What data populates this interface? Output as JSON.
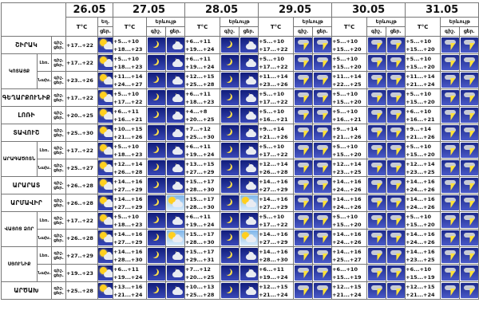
{
  "dates": [
    "26.05",
    "27.05",
    "28.05",
    "29.05",
    "30.05",
    "31.05"
  ],
  "labels": {
    "temp": "T°C",
    "phen_short": "Եղ. ",
    "phenomenon": "Երևույթ",
    "night": "գիշ.",
    "day": "ցեր."
  },
  "regions": [
    {
      "name": "ՇԻՐԱԿ"
    },
    {
      "name": "ԿՈՏԱՅՔ",
      "subs": [
        "Լեռ.",
        "Նախ."
      ]
    },
    {
      "name": "ԳԵՂԱՐՔՈՒՆԻՔ"
    },
    {
      "name": "ԼՈՌԻ"
    },
    {
      "name": "ՏԱՎՈՒՇ"
    },
    {
      "name": "ԱՐԱԳԱԾՈՏՆ",
      "subs": [
        "Լեռ.",
        "Նախ."
      ]
    },
    {
      "name": "ԱՐԱՐԱՏ"
    },
    {
      "name": "ԱՐՄԱՎԻՐ"
    },
    {
      "name": "ՎԱՅՈՑ ՁՈՐ",
      "subs": [
        "Լեռ.",
        "Նախ."
      ]
    },
    {
      "name": "ՍՅՈՒՆԻՔ",
      "subs": [
        "Լեռ.",
        "Նախ."
      ]
    },
    {
      "name": "ԱՐԾԱԽ"
    }
  ],
  "temps": [
    [
      [
        "+17..+22"
      ],
      [
        "+5...+10",
        "+18...+23"
      ],
      [
        "+6...+11",
        "+19...+24"
      ],
      [
        "+5...+10",
        "+17...+22"
      ],
      [
        "+5...+10",
        "+15...+20"
      ],
      [
        "+5...+10",
        "+15...+20"
      ]
    ],
    [
      [
        "+17..+22"
      ],
      [
        "+5...+10",
        "+18...+23"
      ],
      [
        "+6...+11",
        "+19...+24"
      ],
      [
        "+5...+10",
        "+17...+22"
      ],
      [
        "+5...+10",
        "+15...+20"
      ],
      [
        "+5...+10",
        "+15...+20"
      ]
    ],
    [
      [
        "+23..+26"
      ],
      [
        "+11...+14",
        "+24...+27"
      ],
      [
        "+12...+15",
        "+25...+28"
      ],
      [
        "+11...+14",
        "+23...+26"
      ],
      [
        "+11...+14",
        "+22...+25"
      ],
      [
        "+11...+14",
        "+21...+24"
      ]
    ],
    [
      [
        "+17..+22"
      ],
      [
        "+5...+10",
        "+17...+22"
      ],
      [
        "+6...+11",
        "+18...+23"
      ],
      [
        "+5...+10",
        "+17...+22"
      ],
      [
        "+5...+10",
        "+15...+20"
      ],
      [
        "+5...+10",
        "+15...+20"
      ]
    ],
    [
      [
        "+20..+25"
      ],
      [
        "+6...+11",
        "+16...+21"
      ],
      [
        "+4...+8",
        "+20...+25"
      ],
      [
        "+5...+10",
        "+16...+21"
      ],
      [
        "+5...+10",
        "+16...+21"
      ],
      [
        "+6...+10",
        "+16...+21"
      ]
    ],
    [
      [
        "+25..+30"
      ],
      [
        "+10...+15",
        "+21...+26"
      ],
      [
        "+7...+12",
        "+25...+30"
      ],
      [
        "+9...+14",
        "+21...+26"
      ],
      [
        "+9...+14",
        "+21...+26"
      ],
      [
        "+9...+14",
        "+21...+26"
      ]
    ],
    [
      [
        "+17..+22"
      ],
      [
        "+5...+10",
        "+18...+23"
      ],
      [
        "+6...+11",
        "+19...+24"
      ],
      [
        "+5...+10",
        "+17...+22"
      ],
      [
        "+5...+10",
        "+15...+20"
      ],
      [
        "+5...+10",
        "+15...+20"
      ]
    ],
    [
      [
        "+25..+27"
      ],
      [
        "+12...+14",
        "+26...+28"
      ],
      [
        "+13...+15",
        "+27...+29"
      ],
      [
        "+12...+14",
        "+26...+28"
      ],
      [
        "+12...+14",
        "+23...+25"
      ],
      [
        "+12...+14",
        "+23...+25"
      ]
    ],
    [
      [
        "+26..+28"
      ],
      [
        "+14...+16",
        "+27...+29"
      ],
      [
        "+15...+17",
        "+28...+30"
      ],
      [
        "+14...+16",
        "+27...+29"
      ],
      [
        "+14...+16",
        "+24...+26"
      ],
      [
        "+14...+16",
        "+24...+26"
      ]
    ],
    [
      [
        "+26..+28"
      ],
      [
        "+14...+16",
        "+27...+29"
      ],
      [
        "+15...+17",
        "+28...+30"
      ],
      [
        "+14...+16",
        "+27...+29"
      ],
      [
        "+14...+16",
        "+24...+26"
      ],
      [
        "+14...+16",
        "+24...+26"
      ]
    ],
    [
      [
        "+17..+22"
      ],
      [
        "+5...+10",
        "+18...+23"
      ],
      [
        "+6...+11",
        "+19...+24"
      ],
      [
        "+5...+10",
        "+17...+22"
      ],
      [
        "+5...+10",
        "+15...+20"
      ],
      [
        "+5...+10",
        "+15...+20"
      ]
    ],
    [
      [
        "+26..+28"
      ],
      [
        "+14...+16",
        "+27...+29"
      ],
      [
        "+15...+17",
        "+28...+30"
      ],
      [
        "+14...+16",
        "+27...+29"
      ],
      [
        "+14...+16",
        "+24...+26"
      ],
      [
        "+14...+16",
        "+24...+26"
      ]
    ],
    [
      [
        "+27..+29"
      ],
      [
        "+14...+16",
        "+28...+30"
      ],
      [
        "+15...+17",
        "+29...+31"
      ],
      [
        "+14...+16",
        "+28...+30"
      ],
      [
        "+14...+16",
        "+25...+27"
      ],
      [
        "+14...+16",
        "+23...+25"
      ]
    ],
    [
      [
        "+19..+23"
      ],
      [
        "+6...+11",
        "+19...+24"
      ],
      [
        "+7...+12",
        "+20...+25"
      ],
      [
        "+6...+11",
        "+19...+24"
      ],
      [
        "+6...+10",
        "+15...+19"
      ],
      [
        "+6...+10",
        "+15...+19"
      ]
    ],
    [
      [
        "+25..+28"
      ],
      [
        "+13...+16",
        "+21...+24"
      ],
      [
        "+10...+13",
        "+25...+28"
      ],
      [
        "+12...+15",
        "+21...+24"
      ],
      [
        "+12...+15",
        "+21...+24"
      ],
      [
        "+12...+15",
        "+21...+24"
      ]
    ]
  ],
  "icons": [
    [
      "sunny-cloud-icon",
      "crescent-moon-icon",
      "partly-cloudy-icon",
      "crescent-moon-icon",
      "partly-cloudy-icon",
      "thunderstorm-icon",
      "thunderstorm-icon",
      "thunderstorm-icon",
      "thunderstorm-icon",
      "thunderstorm-icon",
      "thunderstorm-icon"
    ],
    [
      "sunny-cloud-icon",
      "crescent-moon-icon",
      "partly-cloudy-icon",
      "crescent-moon-icon",
      "partly-cloudy-icon",
      "thunderstorm-icon",
      "thunderstorm-icon",
      "thunderstorm-icon",
      "thunderstorm-icon",
      "thunderstorm-icon",
      "thunderstorm-icon"
    ],
    [
      "sunny-cloud-icon",
      "crescent-moon-icon",
      "partly-cloudy-icon",
      "crescent-moon-icon",
      "partly-cloudy-icon",
      "thunderstorm-icon",
      "thunderstorm-icon",
      "thunderstorm-icon",
      "thunderstorm-icon",
      "thunderstorm-icon",
      "thunderstorm-icon"
    ],
    [
      "sunny-cloud-icon",
      "crescent-moon-icon",
      "partly-cloudy-icon",
      "crescent-moon-icon",
      "partly-cloudy-icon",
      "thunderstorm-icon",
      "thunderstorm-icon",
      "thunderstorm-icon",
      "thunderstorm-icon",
      "thunderstorm-icon",
      "thunderstorm-icon"
    ],
    [
      "sunny-cloud-icon",
      "crescent-moon-icon",
      "partly-cloudy-icon",
      "crescent-moon-icon",
      "partly-cloudy-icon",
      "thunderstorm-icon",
      "thunderstorm-icon",
      "thunderstorm-icon",
      "thunderstorm-icon",
      "thunderstorm-icon",
      "thunderstorm-icon"
    ],
    [
      "sunny-cloud-icon",
      "crescent-moon-icon",
      "partly-cloudy-icon",
      "crescent-moon-icon",
      "partly-cloudy-icon",
      "thunderstorm-icon",
      "thunderstorm-icon",
      "thunderstorm-icon",
      "thunderstorm-icon",
      "thunderstorm-icon",
      "thunderstorm-icon"
    ],
    [
      "sunny-cloud-icon",
      "crescent-moon-icon",
      "partly-cloudy-icon",
      "crescent-moon-icon",
      "partly-cloudy-icon",
      "thunderstorm-icon",
      "thunderstorm-icon",
      "thunderstorm-icon",
      "thunderstorm-icon",
      "thunderstorm-icon",
      "thunderstorm-icon"
    ],
    [
      "sunny-cloud-icon",
      "crescent-moon-icon",
      "partly-cloudy-icon",
      "crescent-moon-icon",
      "partly-cloudy-icon",
      "thunderstorm-icon",
      "thunderstorm-icon",
      "thunderstorm-icon",
      "thunderstorm-icon",
      "thunderstorm-icon",
      "thunderstorm-icon"
    ],
    [
      "sunny-cloud-icon",
      "crescent-moon-icon",
      "partly-cloudy-icon",
      "crescent-moon-icon",
      "partly-cloudy-icon",
      "thunderstorm-icon",
      "thunderstorm-icon",
      "thunderstorm-icon",
      "thunderstorm-icon",
      "thunderstorm-icon",
      "thunderstorm-icon"
    ],
    [
      "sunny-cloud-icon",
      "crescent-moon-icon",
      "sunny-day-icon",
      "crescent-moon-icon",
      "sunny-day-icon",
      "thunderstorm-icon",
      "thunderstorm-icon",
      "thunderstorm-icon",
      "thunderstorm-icon",
      "thunderstorm-icon",
      "thunderstorm-icon"
    ],
    [
      "sunny-cloud-icon",
      "crescent-moon-icon",
      "partly-cloudy-icon",
      "crescent-moon-icon",
      "partly-cloudy-icon",
      "thunderstorm-icon",
      "thunderstorm-icon",
      "thunderstorm-icon",
      "thunderstorm-icon",
      "thunderstorm-icon",
      "thunderstorm-icon"
    ],
    [
      "sunny-cloud-icon",
      "crescent-moon-icon",
      "sunny-day-icon",
      "crescent-moon-icon",
      "sunny-day-icon",
      "thunderstorm-icon",
      "thunderstorm-icon",
      "thunderstorm-icon",
      "thunderstorm-icon",
      "thunderstorm-icon",
      "thunderstorm-icon"
    ],
    [
      "sunny-cloud-icon",
      "crescent-moon-icon",
      "partly-cloudy-icon",
      "crescent-moon-icon",
      "partly-cloudy-icon",
      "thunderstorm-icon",
      "thunderstorm-icon",
      "thunderstorm-icon",
      "thunderstorm-icon",
      "thunderstorm-icon",
      "thunderstorm-icon"
    ],
    [
      "sunny-cloud-icon",
      "crescent-moon-icon",
      "partly-cloudy-icon",
      "crescent-moon-icon",
      "partly-cloudy-icon",
      "thunderstorm-icon",
      "thunderstorm-icon",
      "thunderstorm-icon",
      "thunderstorm-icon",
      "thunderstorm-icon",
      "thunderstorm-icon"
    ],
    [
      "sunny-cloud-icon",
      "crescent-moon-icon",
      "partly-cloudy-icon",
      "crescent-moon-icon",
      "partly-cloudy-icon",
      "thunderstorm-icon",
      "thunderstorm-icon",
      "thunderstorm-icon",
      "thunderstorm-icon",
      "thunderstorm-icon",
      "thunderstorm-icon"
    ]
  ]
}
